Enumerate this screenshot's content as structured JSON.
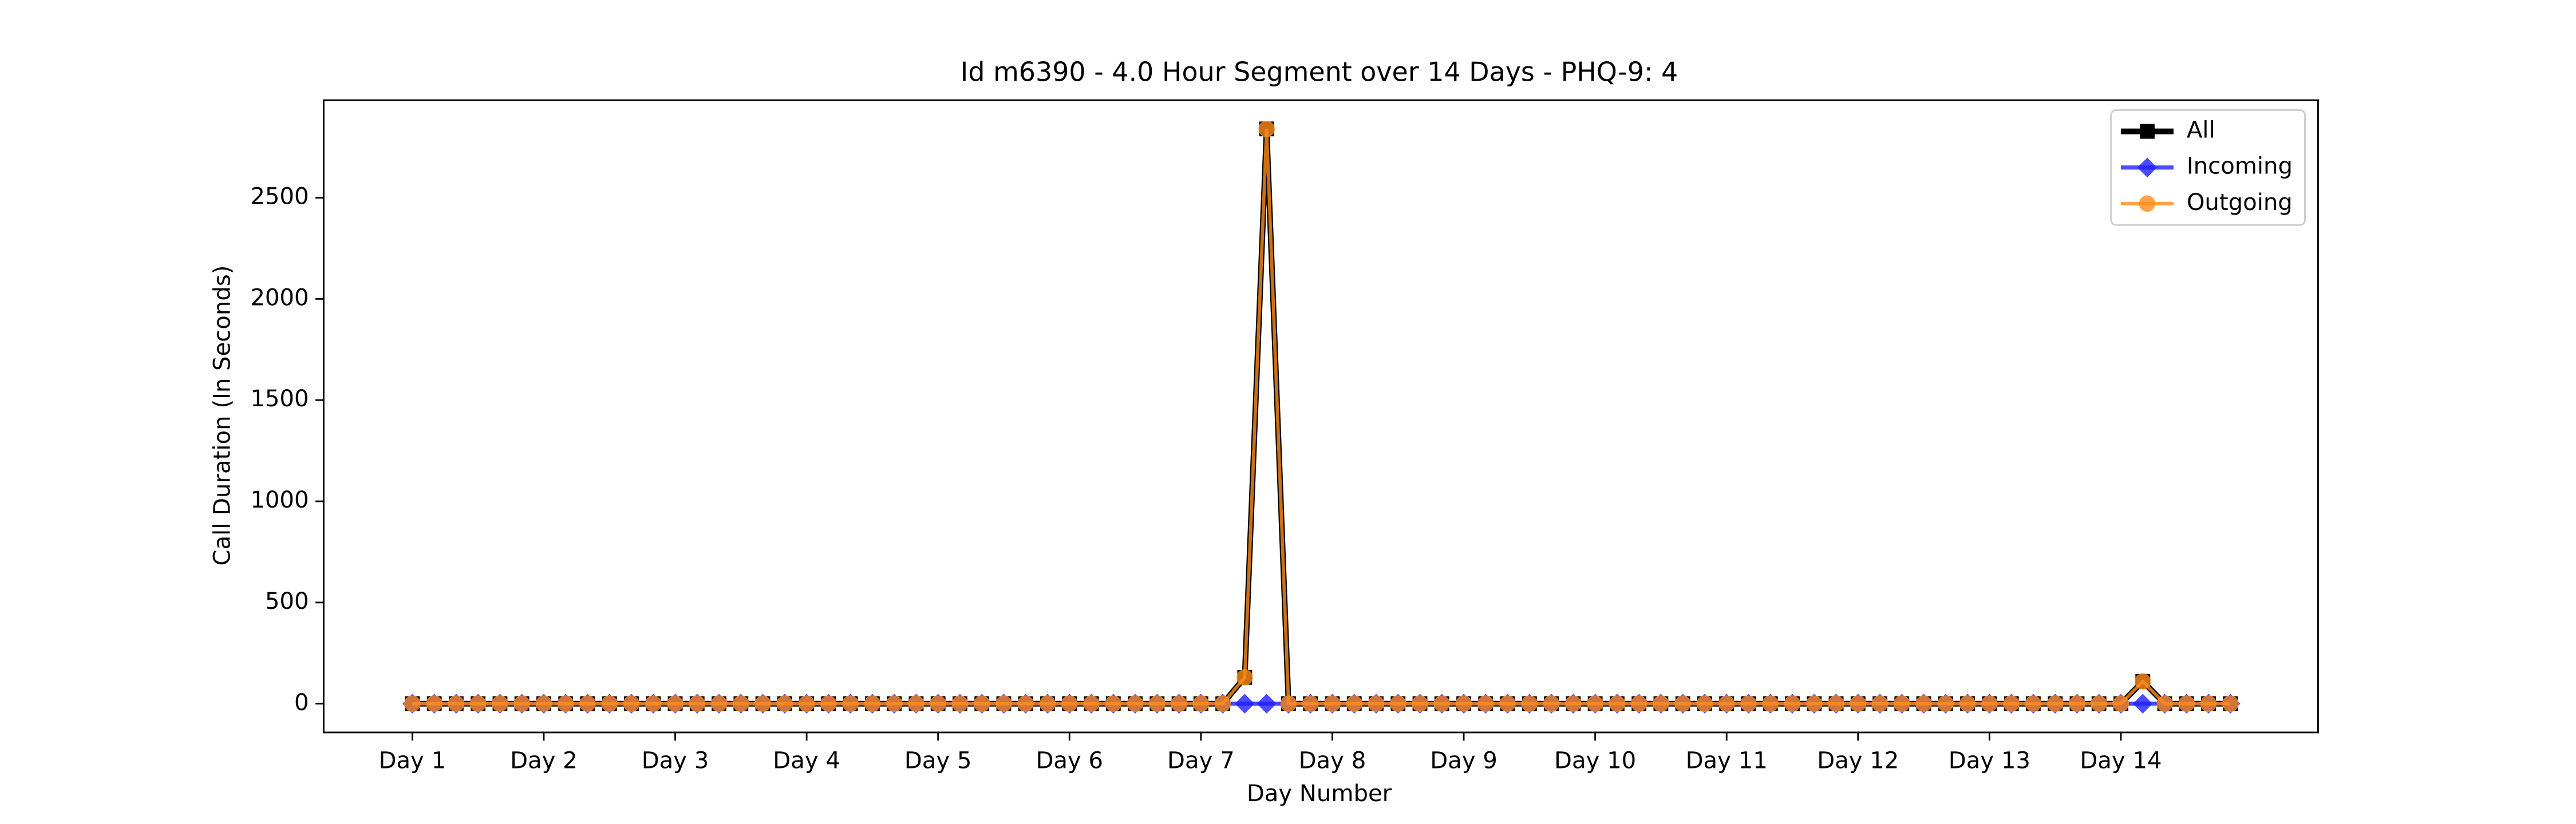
{
  "chart_data": {
    "type": "line",
    "title": "Id m6390 - 4.0 Hour Segment over 14 Days - PHQ-9: 4",
    "xlabel": "Day Number",
    "ylabel": "Call Duration (In Seconds)",
    "categories": [
      "Day 1",
      null,
      null,
      null,
      null,
      null,
      "Day 2",
      null,
      null,
      null,
      null,
      null,
      "Day 3",
      null,
      null,
      null,
      null,
      null,
      "Day 4",
      null,
      null,
      null,
      null,
      null,
      "Day 5",
      null,
      null,
      null,
      null,
      null,
      "Day 6",
      null,
      null,
      null,
      null,
      null,
      "Day 7",
      null,
      null,
      null,
      null,
      null,
      "Day 8",
      null,
      null,
      null,
      null,
      null,
      "Day 9",
      null,
      null,
      null,
      null,
      null,
      "Day 10",
      null,
      null,
      null,
      null,
      null,
      "Day 11",
      null,
      null,
      null,
      null,
      null,
      "Day 12",
      null,
      null,
      null,
      null,
      null,
      "Day 13",
      null,
      null,
      null,
      null,
      null,
      "Day 14",
      null,
      null,
      null,
      null,
      null
    ],
    "series": [
      {
        "name": "All",
        "color": "#000000",
        "marker": "square",
        "values": [
          0,
          0,
          0,
          0,
          0,
          0,
          0,
          0,
          0,
          0,
          0,
          0,
          0,
          0,
          0,
          0,
          0,
          0,
          0,
          0,
          0,
          0,
          0,
          0,
          0,
          0,
          0,
          0,
          0,
          0,
          0,
          0,
          0,
          0,
          0,
          0,
          0,
          0,
          130,
          2840,
          0,
          0,
          0,
          0,
          0,
          0,
          0,
          0,
          0,
          0,
          0,
          0,
          0,
          0,
          0,
          0,
          0,
          0,
          0,
          0,
          0,
          0,
          0,
          0,
          0,
          0,
          0,
          0,
          0,
          0,
          0,
          0,
          0,
          0,
          0,
          0,
          0,
          0,
          0,
          110,
          0,
          0,
          0,
          0
        ]
      },
      {
        "name": "Incoming",
        "color": "#1f1fff",
        "marker": "diamond",
        "values": [
          0,
          0,
          0,
          0,
          0,
          0,
          0,
          0,
          0,
          0,
          0,
          0,
          0,
          0,
          0,
          0,
          0,
          0,
          0,
          0,
          0,
          0,
          0,
          0,
          0,
          0,
          0,
          0,
          0,
          0,
          0,
          0,
          0,
          0,
          0,
          0,
          0,
          0,
          0,
          0,
          0,
          0,
          0,
          0,
          0,
          0,
          0,
          0,
          0,
          0,
          0,
          0,
          0,
          0,
          0,
          0,
          0,
          0,
          0,
          0,
          0,
          0,
          0,
          0,
          0,
          0,
          0,
          0,
          0,
          0,
          0,
          0,
          0,
          0,
          0,
          0,
          0,
          0,
          0,
          0,
          0,
          0,
          0,
          0
        ]
      },
      {
        "name": "Outgoing",
        "color": "#ff8c1a",
        "marker": "circle",
        "values": [
          0,
          0,
          0,
          0,
          0,
          0,
          0,
          0,
          0,
          0,
          0,
          0,
          0,
          0,
          0,
          0,
          0,
          0,
          0,
          0,
          0,
          0,
          0,
          0,
          0,
          0,
          0,
          0,
          0,
          0,
          0,
          0,
          0,
          0,
          0,
          0,
          0,
          0,
          130,
          2840,
          0,
          0,
          0,
          0,
          0,
          0,
          0,
          0,
          0,
          0,
          0,
          0,
          0,
          0,
          0,
          0,
          0,
          0,
          0,
          0,
          0,
          0,
          0,
          0,
          0,
          0,
          0,
          0,
          0,
          0,
          0,
          0,
          0,
          0,
          0,
          0,
          0,
          0,
          0,
          110,
          0,
          0,
          0,
          0
        ]
      }
    ],
    "ylim": [
      -142,
      2982
    ],
    "yticks": [
      0,
      500,
      1000,
      1500,
      2000,
      2500
    ],
    "legend": "upper right"
  }
}
